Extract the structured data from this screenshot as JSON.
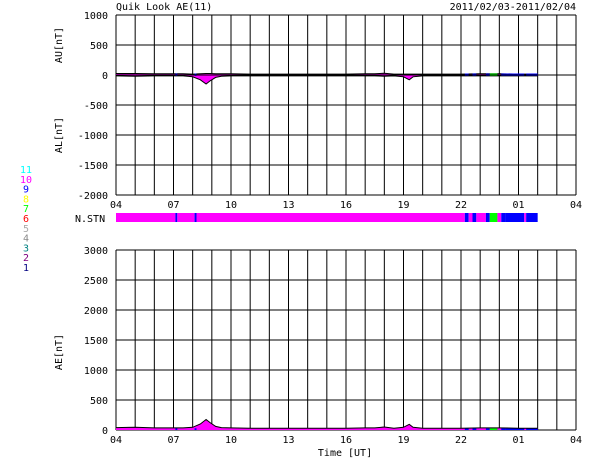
{
  "header": {
    "title": "Quik Look AE(11)",
    "date_range": "2011/02/03-2011/02/04"
  },
  "colors": {
    "ae_main": "#ff00ff",
    "stn_11": "#00ffff",
    "stn_10": "#ff00ff",
    "stn_9": "#0000ff",
    "stn_8": "#ffff00",
    "stn_7": "#00ff00",
    "stn_6": "#ff0000",
    "stn_5": "#aaaaaa",
    "stn_4": "#888888",
    "stn_3": "#008080",
    "stn_2": "#800080",
    "stn_1": "#000080"
  },
  "station_legend": [
    "11",
    "10",
    "9",
    "8",
    "7",
    "6",
    "5",
    "4",
    "3",
    "2",
    "1"
  ],
  "nstn_label": "N.STN",
  "time_ticks": [
    "04",
    "07",
    "10",
    "13",
    "16",
    "19",
    "22",
    "01",
    "04"
  ],
  "xlabel": "Time [UT]",
  "chart_data": [
    {
      "type": "area",
      "name": "AU/AL",
      "ylabel_upper": "AU[nT]",
      "ylabel_lower": "AL[nT]",
      "ylim": [
        -2000,
        1000
      ],
      "yticks": [
        "1000",
        "500",
        "0",
        "-500",
        "-1000",
        "-1500",
        "-2000"
      ],
      "x_hours": [
        4,
        5,
        6,
        7,
        7.5,
        8,
        8.4,
        8.7,
        8.9,
        9.2,
        9.5,
        10,
        11,
        12,
        13,
        14,
        15,
        16,
        17,
        17.5,
        18,
        18.5,
        19,
        19.3,
        19.5,
        20,
        21,
        22,
        23,
        24,
        25,
        26
      ],
      "au": [
        25,
        25,
        20,
        20,
        20,
        15,
        20,
        25,
        25,
        20,
        20,
        20,
        15,
        15,
        15,
        15,
        15,
        15,
        20,
        20,
        30,
        15,
        15,
        15,
        15,
        15,
        15,
        15,
        20,
        20,
        15,
        15
      ],
      "al": [
        -15,
        -20,
        -15,
        -15,
        -15,
        -30,
        -80,
        -150,
        -100,
        -40,
        -20,
        -15,
        -15,
        -15,
        -15,
        -15,
        -15,
        -15,
        -15,
        -15,
        -20,
        -15,
        -30,
        -80,
        -30,
        -15,
        -15,
        -15,
        -15,
        -15,
        -15,
        -15
      ]
    },
    {
      "type": "area",
      "name": "AE",
      "ylabel": "AE[nT]",
      "ylim": [
        0,
        3000
      ],
      "yticks": [
        "3000",
        "2500",
        "2000",
        "1500",
        "1000",
        "500",
        "0"
      ],
      "x_hours": [
        4,
        5,
        6,
        7,
        7.5,
        8,
        8.4,
        8.7,
        8.9,
        9.2,
        9.5,
        10,
        11,
        12,
        13,
        14,
        15,
        16,
        17,
        17.5,
        18,
        18.5,
        19,
        19.3,
        19.5,
        20,
        21,
        22,
        23,
        24,
        25,
        26
      ],
      "ae": [
        40,
        45,
        35,
        35,
        35,
        45,
        100,
        175,
        125,
        60,
        40,
        35,
        30,
        30,
        30,
        30,
        30,
        30,
        35,
        35,
        50,
        30,
        45,
        95,
        45,
        30,
        30,
        30,
        35,
        35,
        30,
        30
      ]
    },
    {
      "type": "bar",
      "name": "N.STN",
      "segments": [
        {
          "start": 4,
          "end": 7.1,
          "stations": 10
        },
        {
          "start": 7.1,
          "end": 7.2,
          "stations": 9
        },
        {
          "start": 7.2,
          "end": 8.1,
          "stations": 10
        },
        {
          "start": 8.1,
          "end": 8.2,
          "stations": 9
        },
        {
          "start": 8.2,
          "end": 22.2,
          "stations": 10
        },
        {
          "start": 22.2,
          "end": 22.4,
          "stations": 9
        },
        {
          "start": 22.4,
          "end": 22.6,
          "stations": 10
        },
        {
          "start": 22.6,
          "end": 22.8,
          "stations": 9
        },
        {
          "start": 22.8,
          "end": 23.3,
          "stations": 10
        },
        {
          "start": 23.3,
          "end": 23.5,
          "stations": 9
        },
        {
          "start": 23.5,
          "end": 23.9,
          "stations": 7
        },
        {
          "start": 23.9,
          "end": 24.1,
          "stations": 10
        },
        {
          "start": 24.1,
          "end": 24.3,
          "stations": 9
        },
        {
          "start": 24.3,
          "end": 25.3,
          "stations": 9
        },
        {
          "start": 25.3,
          "end": 25.4,
          "stations": 10
        },
        {
          "start": 25.4,
          "end": 26.0,
          "stations": 9
        }
      ]
    }
  ]
}
